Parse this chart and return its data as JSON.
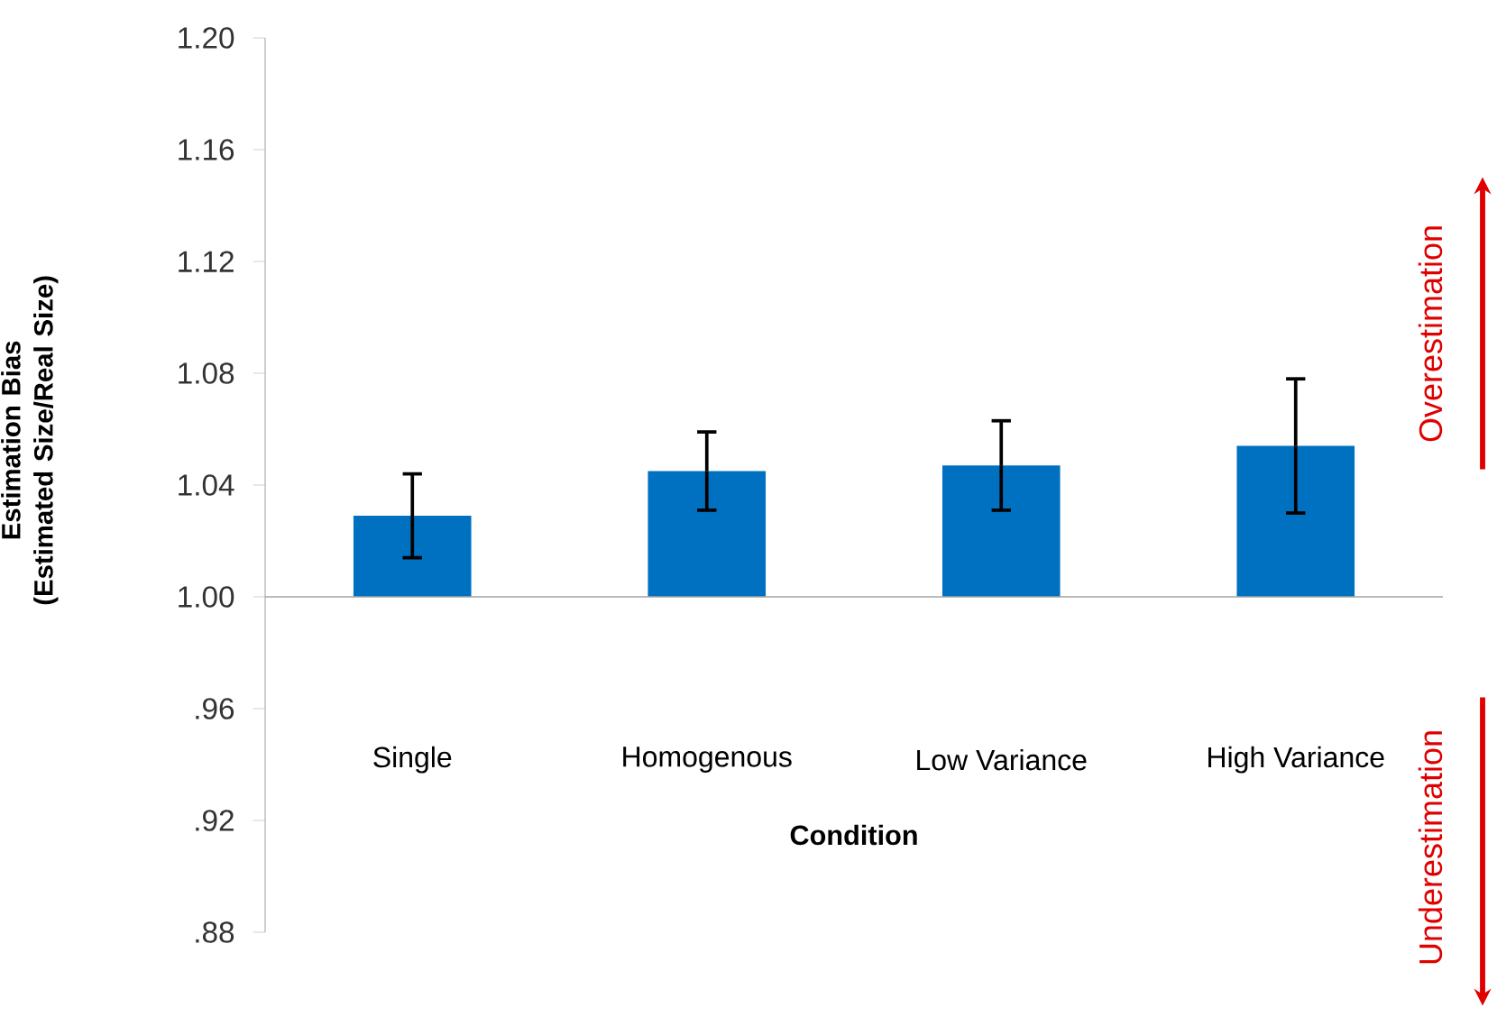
{
  "chart_data": {
    "type": "bar",
    "xlabel": "Condition",
    "ylabel": "Estimation Bias (Estimated Size/Real Size)",
    "categories": [
      "Single",
      "Homogenous",
      "Low Variance",
      "High Variance"
    ],
    "base": [
      1.0,
      1.0,
      1.0,
      1.0
    ],
    "values": [
      0.029,
      0.045,
      0.047,
      0.054
    ],
    "errors": [
      0.015,
      0.014,
      0.016,
      0.024
    ],
    "color": "#0070c0",
    "ylim": [
      0.88,
      1.2
    ],
    "yticks": [
      {
        "value": 0.88,
        "label": ".88"
      },
      {
        "value": 0.92,
        "label": ".92"
      },
      {
        "value": 0.96,
        "label": ".96"
      },
      {
        "value": 1.0,
        "label": "1.00"
      },
      {
        "value": 1.04,
        "label": "1.04"
      },
      {
        "value": 1.08,
        "label": "1.08"
      },
      {
        "value": 1.12,
        "label": "1.12"
      },
      {
        "value": 1.16,
        "label": "1.16"
      },
      {
        "value": 1.2,
        "label": "1.20"
      }
    ],
    "annotations": [
      "Overestimation",
      "Underestimation"
    ]
  }
}
